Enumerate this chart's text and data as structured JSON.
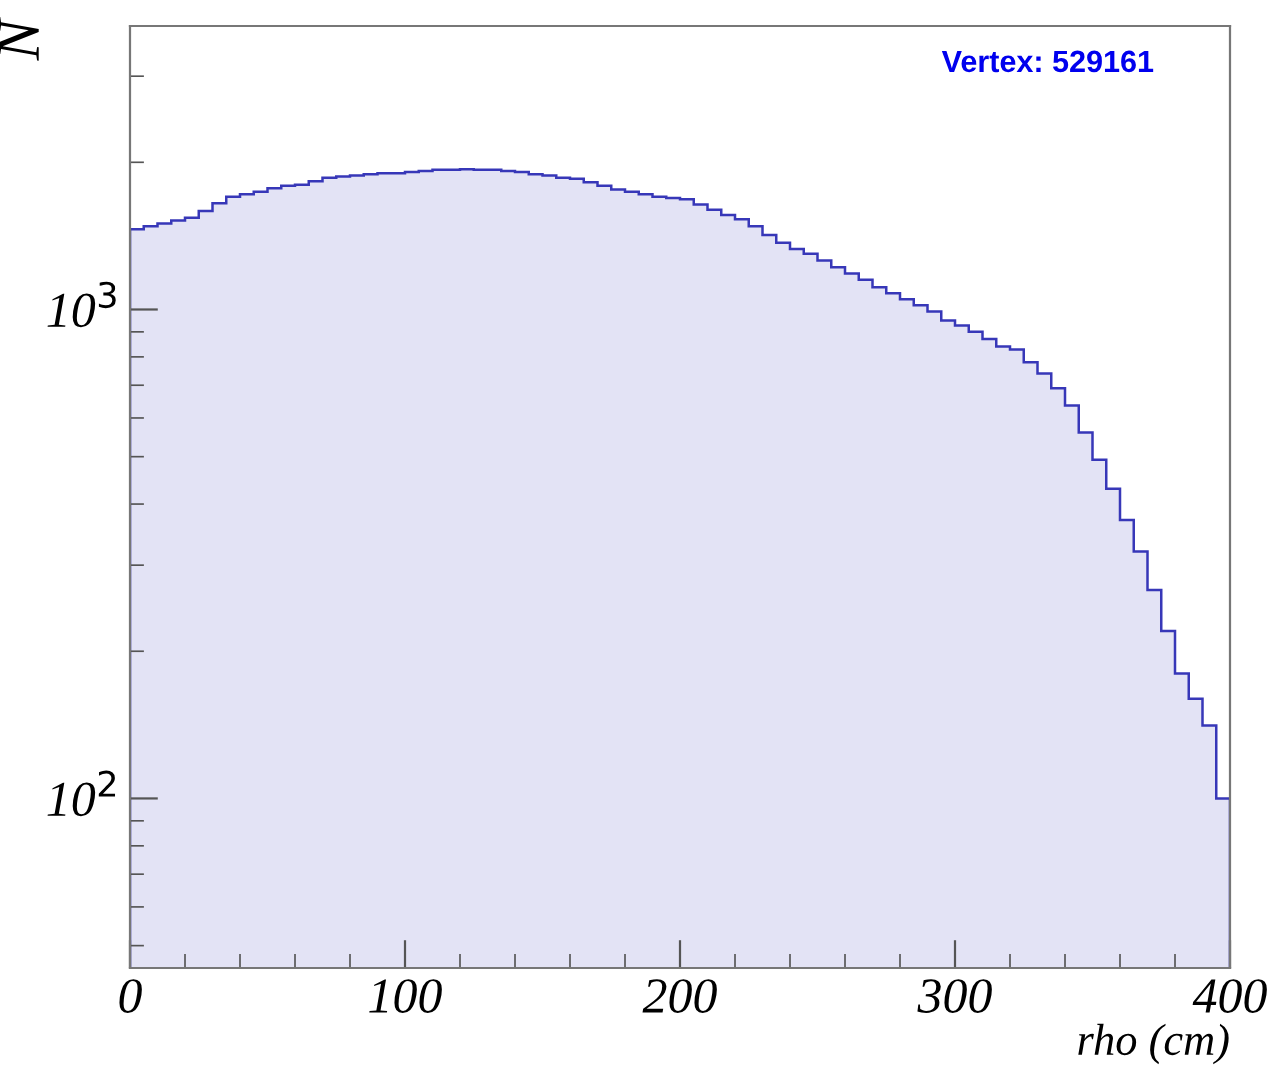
{
  "chart_data": {
    "type": "histogram",
    "xlabel": "rho (cm)",
    "ylabel": "N",
    "annotations": [
      "Vertex: 529161"
    ],
    "bins": [
      0,
      5,
      10,
      15,
      20,
      25,
      30,
      35,
      40,
      45,
      50,
      55,
      60,
      65,
      70,
      75,
      80,
      85,
      90,
      95,
      100,
      105,
      110,
      115,
      120,
      125,
      130,
      135,
      140,
      145,
      150,
      155,
      160,
      165,
      170,
      175,
      180,
      185,
      190,
      195,
      200,
      205,
      210,
      215,
      220,
      225,
      230,
      235,
      240,
      245,
      250,
      255,
      260,
      265,
      270,
      275,
      280,
      285,
      290,
      295,
      300,
      305,
      310,
      315,
      320,
      325,
      330,
      335,
      340,
      345,
      350,
      355,
      360,
      365,
      370,
      375,
      380,
      385,
      390,
      395,
      400
    ],
    "values": [
      1460,
      1480,
      1500,
      1520,
      1540,
      1590,
      1650,
      1700,
      1720,
      1740,
      1770,
      1790,
      1800,
      1830,
      1860,
      1870,
      1880,
      1890,
      1900,
      1900,
      1910,
      1920,
      1930,
      1930,
      1935,
      1930,
      1930,
      1920,
      1910,
      1890,
      1880,
      1860,
      1850,
      1820,
      1790,
      1760,
      1740,
      1720,
      1700,
      1690,
      1680,
      1640,
      1600,
      1560,
      1530,
      1480,
      1420,
      1370,
      1330,
      1300,
      1260,
      1220,
      1185,
      1150,
      1110,
      1080,
      1050,
      1020,
      990,
      950,
      927,
      900,
      870,
      840,
      828,
      780,
      740,
      690,
      636,
      560,
      493,
      430,
      371,
      320,
      267,
      220,
      180,
      160,
      141,
      100
    ],
    "color": "#e3e3f5",
    "log": "y",
    "grid": false,
    "xlim": [
      0,
      400
    ],
    "xticks": [
      0,
      100,
      200,
      300,
      400
    ],
    "ylim": [
      45,
      3800
    ],
    "yticks": [
      {
        "value": 100,
        "label": "10$^{2}$"
      },
      {
        "value": 1000,
        "label": "10$^{3}$"
      }
    ]
  }
}
